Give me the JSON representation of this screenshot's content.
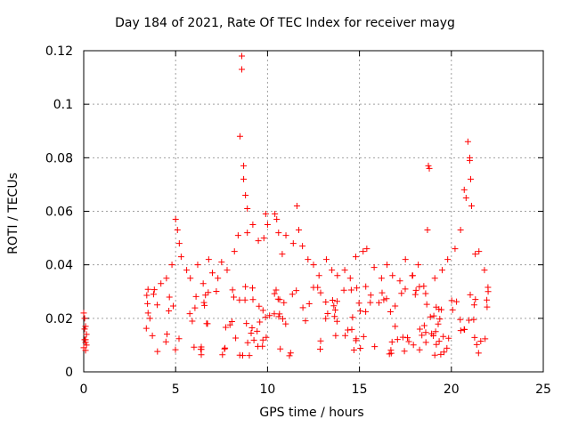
{
  "chart_data": {
    "type": "scatter",
    "title": "Day 184 of 2021, Rate Of TEC Index for receiver mayg",
    "xlabel": "GPS time / hours",
    "ylabel": "ROTI / TECUs",
    "xlim": [
      0,
      25
    ],
    "ylim": [
      0,
      0.12
    ],
    "xticks": [
      0,
      5,
      10,
      15,
      20,
      25
    ],
    "yticks": [
      0,
      0.02,
      0.04,
      0.06,
      0.08,
      0.1,
      0.12
    ],
    "grid": true,
    "legend": "none",
    "marker": "+",
    "color": "#ff0000",
    "series": [
      {
        "x": [
          0,
          0,
          0.05,
          0.05,
          0.1,
          0.1,
          0.15,
          0.15,
          0.05,
          0.1,
          0.1,
          3.5,
          3.6,
          3.8,
          4.0,
          4.2,
          4.5,
          4.8,
          5.0,
          5.1,
          5.2,
          5.3,
          5.6,
          5.8,
          6.2,
          6.5,
          6.8,
          7.0,
          7.3,
          7.5,
          7.8,
          8.2,
          8.4,
          8.5,
          8.6,
          8.6,
          8.7,
          8.7,
          8.8,
          8.9,
          8.9,
          9.2,
          9.5,
          9.8,
          9.9,
          10.0,
          10.4,
          10.5,
          10.6,
          10.8,
          11.0,
          11.4,
          11.6,
          11.7,
          11.9,
          12.2,
          12.5,
          12.8,
          13.2,
          13.5,
          13.8,
          14.2,
          14.5,
          14.8,
          15.2,
          15.4,
          15.8,
          16.2,
          16.5,
          16.8,
          17.2,
          17.5,
          17.9,
          18.2,
          18.5,
          18.7,
          18.75,
          18.8,
          19.1,
          19.5,
          19.8,
          20.2,
          20.5,
          20.7,
          20.8,
          20.9,
          21.0,
          21.0,
          21.05,
          21.1,
          21.3,
          21.5,
          21.8,
          22.0
        ],
        "y": [
          0.022,
          0.009,
          0.02,
          0.012,
          0.017,
          0.008,
          0.014,
          0.01,
          0.016,
          0.012,
          0.011,
          0.022,
          0.02,
          0.029,
          0.025,
          0.033,
          0.035,
          0.04,
          0.057,
          0.053,
          0.048,
          0.043,
          0.038,
          0.035,
          0.04,
          0.033,
          0.042,
          0.037,
          0.035,
          0.041,
          0.038,
          0.045,
          0.051,
          0.088,
          0.118,
          0.113,
          0.077,
          0.072,
          0.066,
          0.061,
          0.052,
          0.055,
          0.049,
          0.05,
          0.059,
          0.055,
          0.059,
          0.057,
          0.052,
          0.044,
          0.051,
          0.048,
          0.062,
          0.053,
          0.047,
          0.042,
          0.04,
          0.036,
          0.042,
          0.038,
          0.036,
          0.038,
          0.035,
          0.043,
          0.045,
          0.046,
          0.039,
          0.035,
          0.04,
          0.036,
          0.034,
          0.042,
          0.036,
          0.04,
          0.032,
          0.053,
          0.077,
          0.076,
          0.035,
          0.038,
          0.042,
          0.046,
          0.053,
          0.068,
          0.065,
          0.086,
          0.08,
          0.079,
          0.072,
          0.062,
          0.044,
          0.045,
          0.038,
          0.03
        ]
      }
    ]
  }
}
